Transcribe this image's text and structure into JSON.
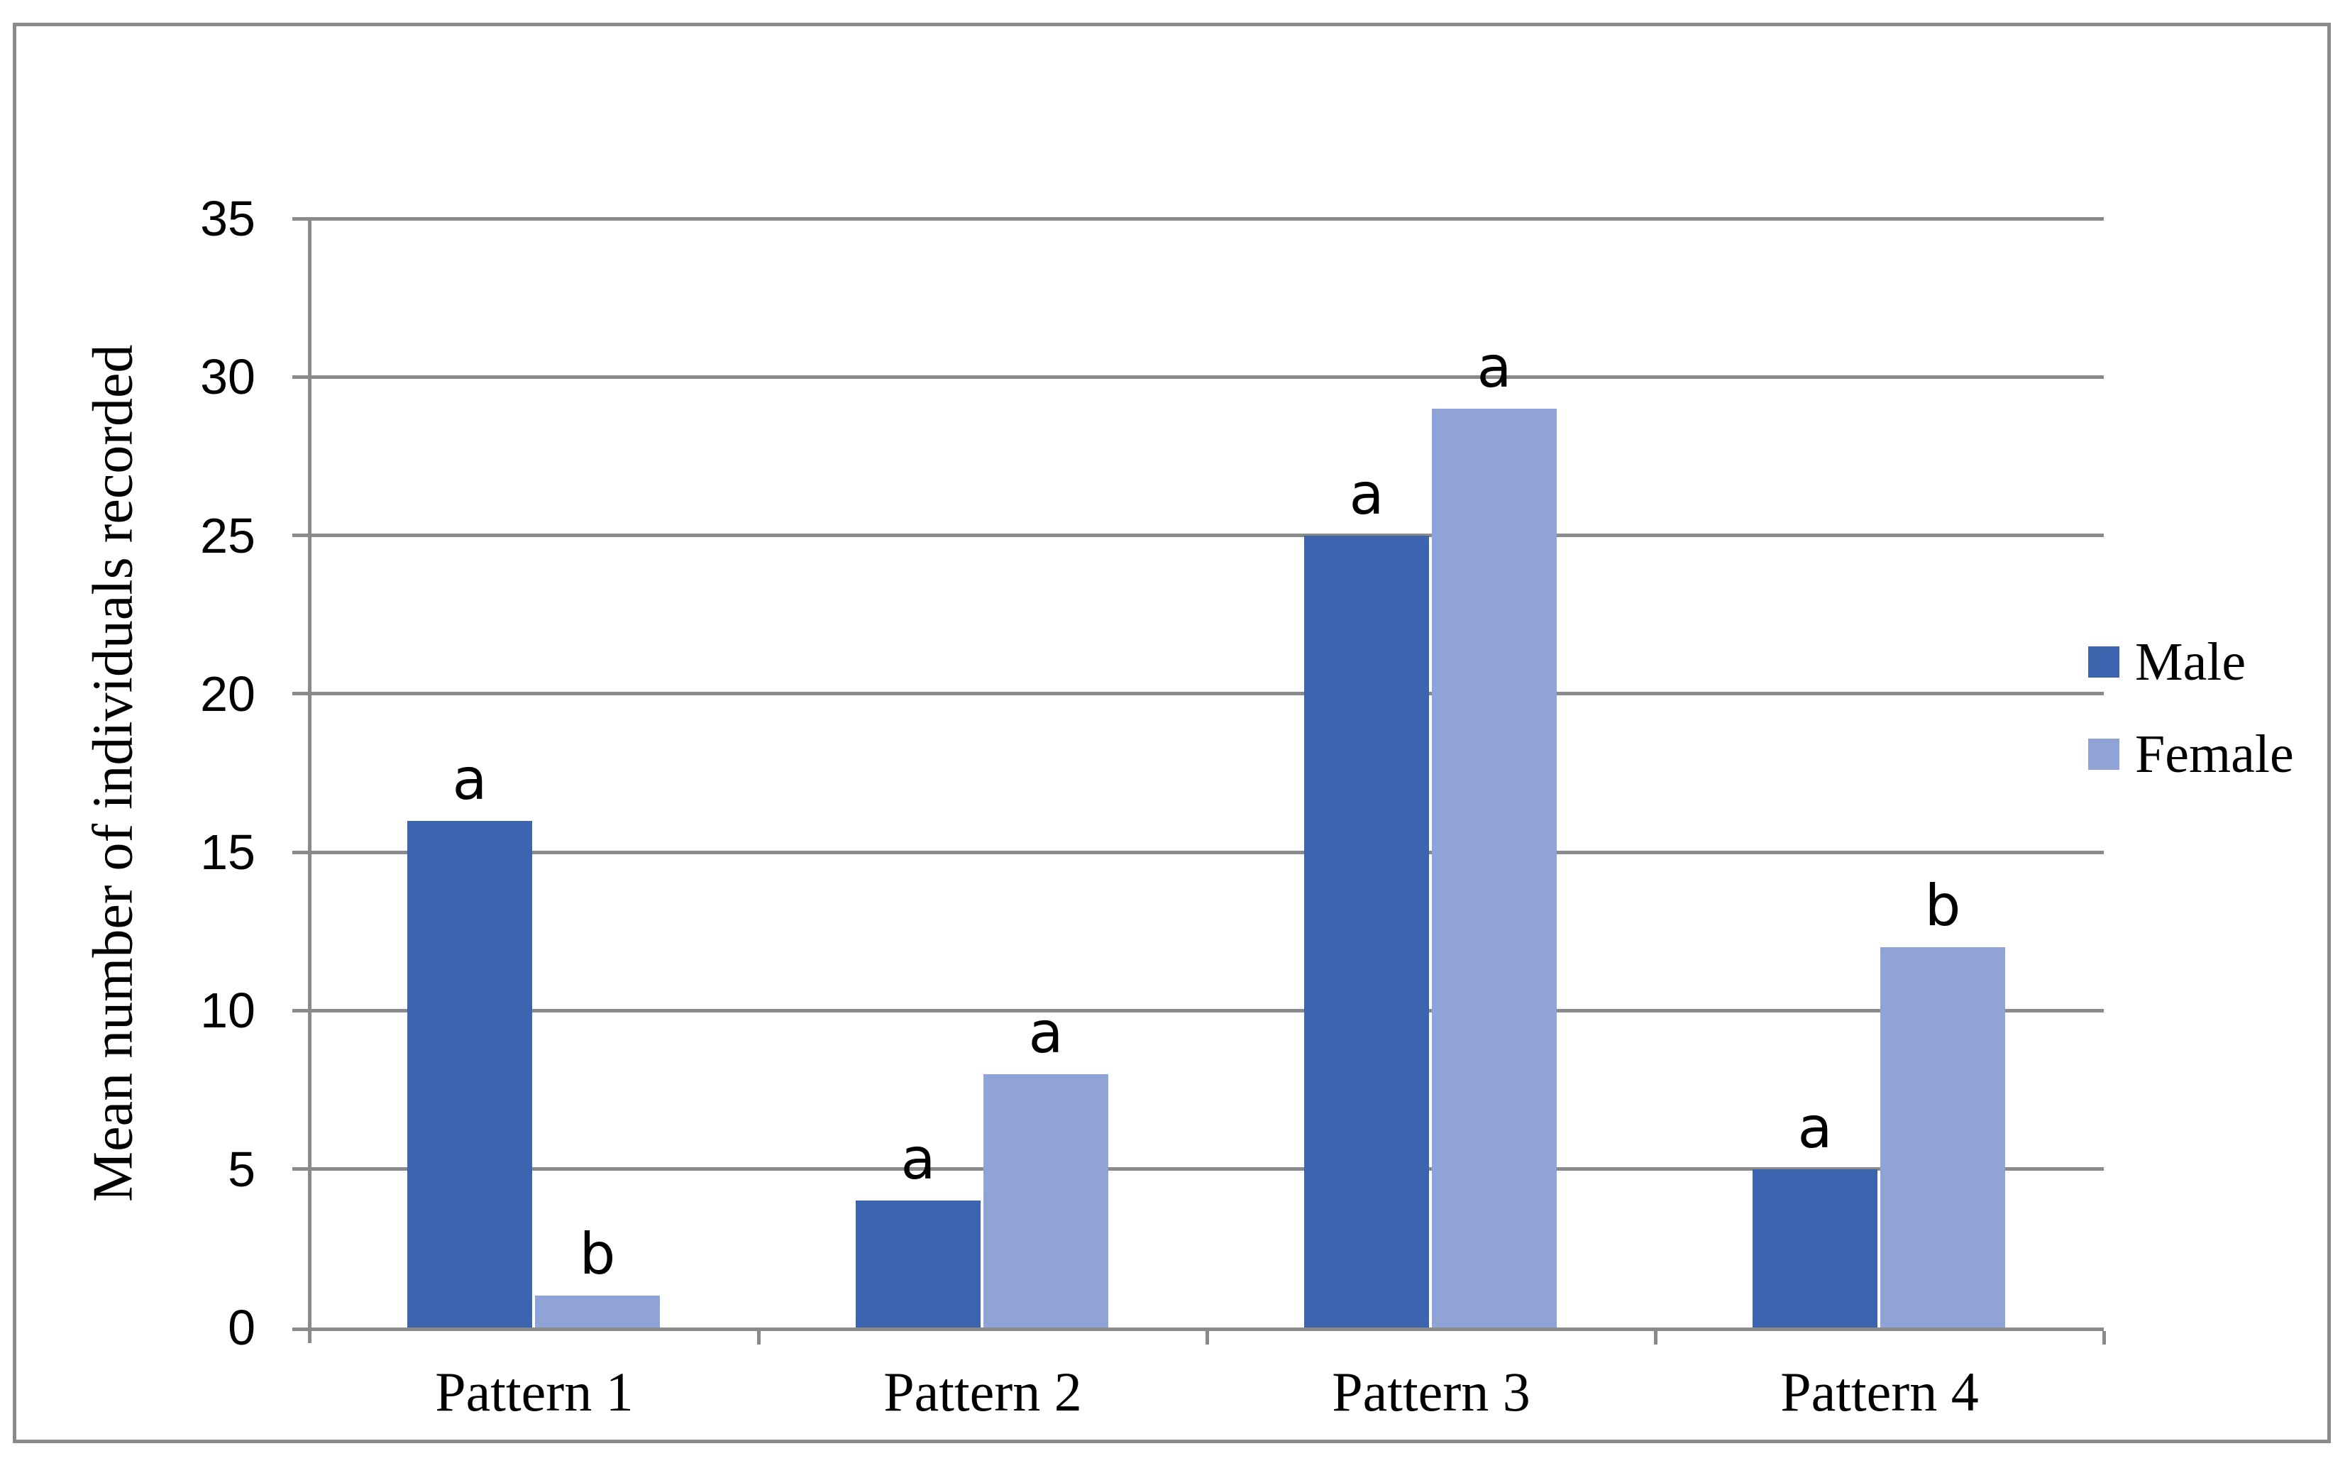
{
  "chart_data": {
    "type": "bar",
    "title": "",
    "ylabel": "Mean number of individuals recorded",
    "xlabel": "",
    "ylim": [
      0,
      35
    ],
    "yticks": [
      0,
      5,
      10,
      15,
      20,
      25,
      30,
      35
    ],
    "grid": "horizontal",
    "legend_position": "right",
    "categories": [
      "Pattern 1",
      "Pattern 2",
      "Pattern 3",
      "Pattern 4"
    ],
    "series": [
      {
        "name": "Male",
        "color": "#3D64AE",
        "values": [
          16,
          4,
          25,
          5
        ],
        "sig_letters": [
          "a",
          "a",
          "a",
          "a"
        ]
      },
      {
        "name": "Female",
        "color": "#8FA3D6",
        "values": [
          1,
          8,
          29,
          12
        ],
        "sig_letters": [
          "b",
          "a",
          "a",
          "b"
        ]
      }
    ]
  },
  "style": {
    "grid_color": "#8A8A8A",
    "axis_color": "#8A8A8A",
    "border_color": "#8A8A8A",
    "text_color": "#000000",
    "background": "#FFFFFF"
  }
}
